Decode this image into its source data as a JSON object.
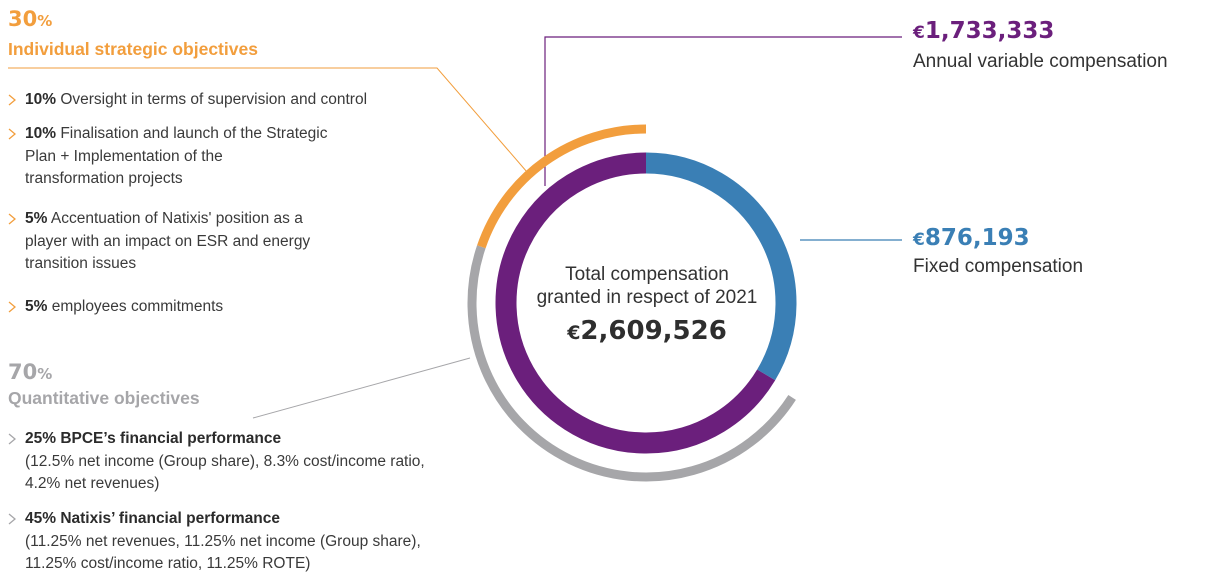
{
  "chart_data": {
    "type": "pie",
    "total": {
      "label": "Total compensation granted in respect of 2021",
      "label_lines": [
        "Total compensation",
        "granted in respect of 2021"
      ],
      "currency": "€",
      "amount": "2,609,526"
    },
    "slices": [
      {
        "name": "Fixed compensation",
        "value": 876193,
        "currency": "€",
        "amount": "876,193",
        "color": "#3a7fb5"
      },
      {
        "name": "Annual variable compensation",
        "value": 1733333,
        "currency": "€",
        "amount": "1,733,333",
        "color": "#6b1f7c"
      }
    ],
    "outer_ring": [
      {
        "name": "Individual strategic objectives",
        "percent": 30,
        "color": "#f29e3d"
      },
      {
        "name": "Quantitative objectives",
        "percent": 70,
        "color": "#a6a6a9"
      }
    ]
  },
  "groups": {
    "individual": {
      "percent": "30",
      "percent_sym": "%",
      "title": "Individual strategic objectives",
      "color": "#f29e3d",
      "items": [
        {
          "pct": "10%",
          "lines": [
            "Oversight in terms of supervision and control"
          ]
        },
        {
          "pct": "10%",
          "lines": [
            "Finalisation and launch of the Strategic",
            "Plan + Implementation of the",
            "transformation projects"
          ]
        },
        {
          "pct": "5%",
          "lines": [
            "Accentuation of Natixis' position as a",
            "player with an impact on ESR and energy",
            "transition issues"
          ]
        },
        {
          "pct": "5%",
          "lines": [
            "employees commitments"
          ]
        }
      ]
    },
    "quantitative": {
      "percent": "70",
      "percent_sym": "%",
      "title": "Quantitative objectives",
      "color": "#a6a6a9",
      "items": [
        {
          "heading": "25% BPCE’s financial performance",
          "lines": [
            "(12.5% net income (Group share), 8.3% cost/income ratio,",
            "4.2% net revenues)"
          ]
        },
        {
          "heading": "45% Natixis’ financial performance",
          "lines": [
            "(11.25% net revenues, 11.25% net income (Group share),",
            "11.25% cost/income ratio, 11.25% ROTE)"
          ]
        }
      ]
    }
  },
  "callouts": {
    "variable": {
      "currency": "€",
      "amount": "1,733,333",
      "label": "Annual variable compensation",
      "color": "#6b1f7c"
    },
    "fixed": {
      "currency": "€",
      "amount": "876,193",
      "label": "Fixed compensation",
      "color": "#3a7fb5"
    }
  },
  "icons": {
    "bullet": "chevron-right-icon"
  }
}
